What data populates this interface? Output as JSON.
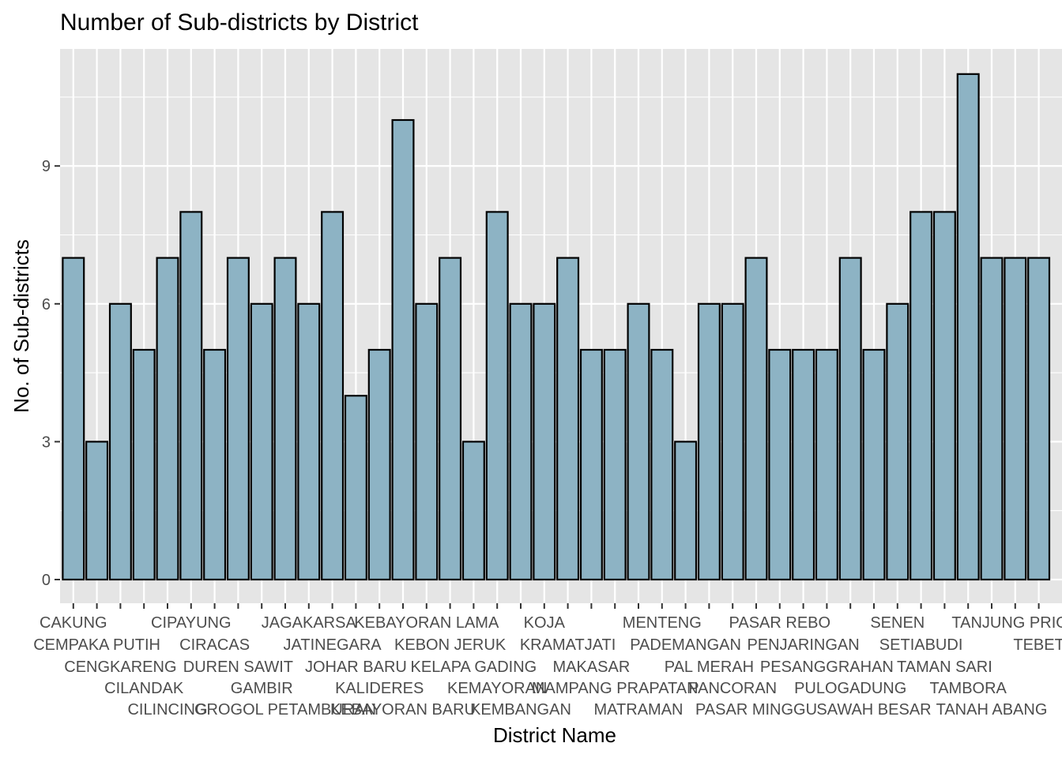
{
  "colors": {
    "bar_fill": "#8db3c4",
    "bar_outline": "#000000",
    "panel": "#e5e5e5",
    "grid": "#ffffff"
  },
  "chart_data": {
    "type": "bar",
    "title": "Number of Sub-districts by District",
    "xlabel": "District Name",
    "ylabel": "No. of Sub-districts",
    "ylim": [
      0,
      11.55
    ],
    "yticks": [
      0,
      3,
      6,
      9
    ],
    "grid": true,
    "legend": "none",
    "categories": [
      "CAKUNG",
      "CEMPAKA PUTIH",
      "CENGKARENG",
      "CILANDAK",
      "CILINCING",
      "CIPAYUNG",
      "CIRACAS",
      "DUREN SAWIT",
      "GAMBIR",
      "GROGOL PETAMBURAN",
      "JAGAKARSA",
      "JATINEGARA",
      "JOHAR BARU",
      "KALIDERES",
      "KEBAYORAN BARU",
      "KEBAYORAN LAMA",
      "KEBON JERUK",
      "KELAPA GADING",
      "KEMAYORAN",
      "KEMBANGAN",
      "KOJA",
      "KRAMATJATI",
      "MAKASAR",
      "MAMPANG PRAPATAN",
      "MATRAMAN",
      "MENTENG",
      "PADEMANGAN",
      "PAL MERAH",
      "PANCORAN",
      "PASAR MINGGU",
      "PASAR REBO",
      "PENJARINGAN",
      "PESANGGRAHAN",
      "PULOGADUNG",
      "SAWAH BESAR",
      "SENEN",
      "SETIABUDI",
      "TAMAN SARI",
      "TAMBORA",
      "TANAH ABANG",
      "TANJUNG PRIOK",
      "TEBET"
    ],
    "values": [
      7,
      3,
      6,
      5,
      7,
      8,
      5,
      7,
      6,
      7,
      6,
      8,
      4,
      5,
      10,
      6,
      7,
      3,
      8,
      6,
      6,
      7,
      5,
      5,
      6,
      5,
      3,
      6,
      6,
      7,
      5,
      5,
      5,
      7,
      5,
      6,
      8,
      8,
      11,
      7,
      7,
      7
    ]
  }
}
